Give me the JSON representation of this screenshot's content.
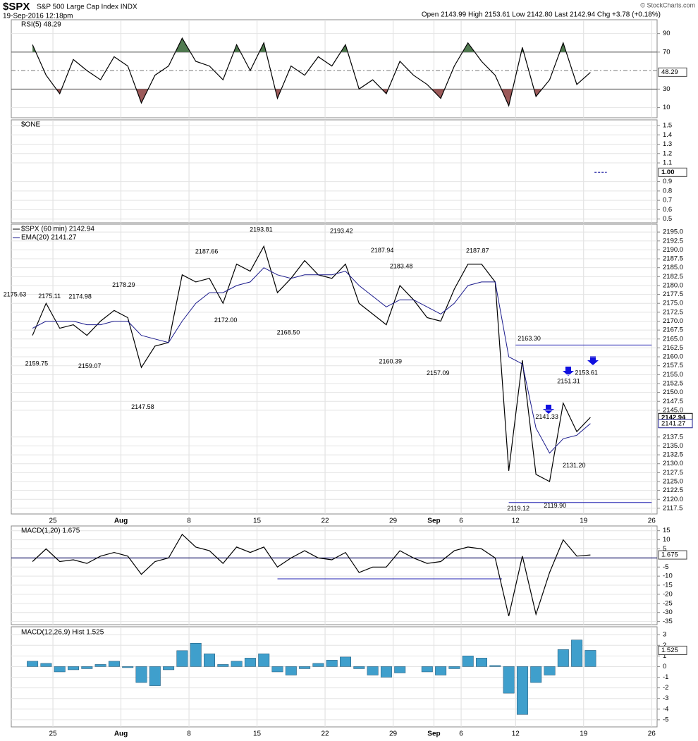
{
  "header": {
    "symbol": "$SPX",
    "name": "S&P 500 Large Cap Index INDX",
    "date": "19-Sep-2016 12:18pm",
    "ohlc": "Open 2143.99 High 2153.61 Low 2142.80 Last 2142.94 Chg +3.78 (+0.18%)",
    "credit": "© StockCharts.com"
  },
  "chart_data": [
    {
      "type": "line",
      "title": "RSI(5) 48.29",
      "ylim": [
        -1,
        105
      ],
      "yticks": [
        10,
        30,
        70,
        90
      ],
      "upper_band": 70,
      "mid_line": 50,
      "lower_band": 30,
      "upper_color": "#4f7a4f",
      "lower_color": "#9c5a5a",
      "last": 48.29,
      "x": [
        -1.5,
        -0.5,
        0.5,
        1.5,
        2.5,
        3.5,
        4.5,
        5.5,
        6.5,
        7.5,
        8.5,
        9.5,
        10.5,
        11.5,
        12.5,
        13.5,
        14.5,
        15.5,
        16.5,
        17.5,
        18.5,
        19.5,
        20.5,
        21.5,
        22.5,
        23.5,
        24.5,
        25.5,
        26.5,
        27.5,
        28.5,
        29.5,
        30.5,
        31.5,
        32.5,
        33.5,
        34.5,
        35.5,
        36.5,
        37.5,
        38.5,
        39.5
      ],
      "series": [
        {
          "name": "RSI(5) 48.29",
          "color": "#000000",
          "values": [
            78,
            45,
            25,
            62,
            50,
            40,
            65,
            55,
            15,
            45,
            55,
            85,
            60,
            55,
            40,
            78,
            50,
            80,
            20,
            55,
            45,
            65,
            55,
            78,
            30,
            40,
            25,
            60,
            45,
            35,
            20,
            55,
            80,
            60,
            45,
            12,
            75,
            22,
            40,
            80,
            35,
            48
          ]
        }
      ]
    },
    {
      "type": "line",
      "title": "$ONE",
      "ylim": [
        0.46,
        1.56
      ],
      "yticks": [
        1.5,
        1.4,
        1.3,
        1.2,
        1.1,
        0.9,
        0.8,
        0.7,
        0.6,
        0.5
      ],
      "last": {
        "value": 1,
        "label": "1.00"
      },
      "x": [
        39.8,
        40.7
      ],
      "series": [
        {
          "name": "$ONE",
          "color": "#1a1aa0",
          "dash": true,
          "values": [
            1,
            1
          ]
        }
      ]
    },
    {
      "type": "line",
      "xlim": [
        -3.06,
        44.4
      ],
      "xticks": [
        {
          "value": 0,
          "label": "25"
        },
        {
          "value": 5,
          "label": "Aug"
        },
        {
          "value": 10,
          "label": "8"
        },
        {
          "value": 15,
          "label": "15"
        },
        {
          "value": 20,
          "label": "22"
        },
        {
          "value": 25,
          "label": "29"
        },
        {
          "value": 28,
          "label": "Sep"
        },
        {
          "value": 30,
          "label": "6"
        },
        {
          "value": 34,
          "label": "12"
        },
        {
          "value": 39,
          "label": "19"
        },
        {
          "value": 44,
          "label": "26"
        }
      ],
      "ylim": [
        2115.9,
        2197.2
      ],
      "yticks": [
        {
          "value": 2195,
          "label": "2195.0"
        },
        2192.5,
        {
          "value": 2190,
          "label": "2190.0"
        },
        2187.5,
        {
          "value": 2185,
          "label": "2185.0"
        },
        2182.5,
        {
          "value": 2180,
          "label": "2180.0"
        },
        2177.5,
        {
          "value": 2175,
          "label": "2175.0"
        },
        2172.5,
        {
          "value": 2170,
          "label": "2170.0"
        },
        2167.5,
        {
          "value": 2165,
          "label": "2165.0"
        },
        2162.5,
        {
          "value": 2160,
          "label": "2160.0"
        },
        2157.5,
        {
          "value": 2155,
          "label": "2155.0"
        },
        2152.5,
        {
          "value": 2150,
          "label": "2150.0"
        },
        2147.5,
        {
          "value": 2145,
          "label": "2145.0"
        },
        2137.5,
        {
          "value": 2135,
          "label": "2135.0"
        },
        2132.5,
        {
          "value": 2130,
          "label": "2130.0"
        },
        2127.5,
        {
          "value": 2125,
          "label": "2125.0"
        },
        2122.5,
        {
          "value": 2120,
          "label": "2120.0"
        },
        2117.5
      ],
      "grid": true,
      "x": [
        -1.5,
        -0.5,
        0.5,
        1.5,
        2.5,
        3.5,
        4.5,
        5.5,
        6.5,
        7.5,
        8.5,
        9.5,
        10.5,
        11.5,
        12.5,
        13.5,
        14.5,
        15.5,
        16.5,
        17.5,
        18.5,
        19.5,
        20.5,
        21.5,
        22.5,
        23.5,
        24.5,
        25.5,
        26.5,
        27.5,
        28.5,
        29.5,
        30.5,
        31.5,
        32.5,
        33.5,
        34.5,
        35.5,
        36.5,
        37.5,
        38.5,
        39.5
      ],
      "series": [
        {
          "name": "$SPX (60 min) 2142.94",
          "color": "#000000",
          "last": 2142.94,
          "values": [
            2166,
            2175,
            2168,
            2169,
            2166,
            2170,
            2173,
            2171,
            2157,
            2163,
            2164,
            2183,
            2181,
            2182,
            2175,
            2186,
            2184,
            2191,
            2178,
            2182,
            2187,
            2183,
            2182,
            2186,
            2175,
            2172,
            2169,
            2180,
            2176,
            2171,
            2170,
            2179,
            2186,
            2186,
            2181,
            2128,
            2159,
            2127,
            2125,
            2147,
            2139,
            2143
          ]
        },
        {
          "name": "EMA(20) 2141.27",
          "color": "#1a1a8c",
          "last": 2141.27,
          "values": [
            2168,
            2170,
            2170,
            2170,
            2169,
            2169,
            2170,
            2170,
            2166,
            2165,
            2164,
            2170,
            2175,
            2178,
            2178,
            2180,
            2181,
            2185,
            2183,
            2182,
            2183,
            2183,
            2183,
            2184,
            2180,
            2177,
            2174,
            2176,
            2176,
            2174,
            2172,
            2175,
            2180,
            2181,
            2181,
            2160,
            2158,
            2140,
            2133,
            2137,
            2138,
            2141.27
          ]
        }
      ],
      "lines": [
        {
          "x": [
            34,
            44
          ],
          "y": [
            2163.3,
            2163.3
          ]
        },
        {
          "x": [
            33.5,
            44
          ],
          "y": [
            2119.12,
            2119.12
          ]
        }
      ],
      "annotations": [
        {
          "x": -2.8,
          "value": 2175.63,
          "label": "2175.63",
          "position": "above"
        },
        {
          "x": -0.25,
          "value": 2175.11,
          "label": "2175.11",
          "position": "above"
        },
        {
          "x": 2,
          "value": 2174.98,
          "label": "2174.98",
          "position": "above"
        },
        {
          "x": 5.2,
          "value": 2178.29,
          "label": "2178.29",
          "position": "above"
        },
        {
          "x": -1.2,
          "value": 2159.75,
          "label": "2159.75",
          "position": "below"
        },
        {
          "x": 2.7,
          "value": 2159.07,
          "label": "2159.07",
          "position": "below"
        },
        {
          "x": 6.6,
          "value": 2147.58,
          "label": "2147.58",
          "position": "below"
        },
        {
          "x": 11.3,
          "value": 2187.66,
          "label": "2187.66",
          "position": "above"
        },
        {
          "x": 12.7,
          "value": 2172.0,
          "label": "2172.00",
          "position": "below"
        },
        {
          "x": 15.3,
          "value": 2193.81,
          "label": "2193.81",
          "position": "above"
        },
        {
          "x": 17.3,
          "value": 2168.5,
          "label": "2168.50",
          "position": "below"
        },
        {
          "x": 21.2,
          "value": 2193.42,
          "label": "2193.42",
          "position": "above"
        },
        {
          "x": 24.2,
          "value": 2187.94,
          "label": "2187.94",
          "position": "above"
        },
        {
          "x": 25.6,
          "value": 2183.48,
          "label": "2183.48",
          "position": "above"
        },
        {
          "x": 24.8,
          "value": 2160.39,
          "label": "2160.39",
          "position": "below"
        },
        {
          "x": 28.3,
          "value": 2157.09,
          "label": "2157.09",
          "position": "below"
        },
        {
          "x": 31.2,
          "value": 2187.87,
          "label": "2187.87",
          "position": "above"
        },
        {
          "x": 35,
          "value": 2163.3,
          "label": "2163.30",
          "position": "above"
        },
        {
          "x": 34.2,
          "value": 2119.12,
          "label": "2119.12",
          "position": "below"
        },
        {
          "x": 36.9,
          "value": 2119.9,
          "label": "2119.90",
          "position": "below"
        },
        {
          "x": 36.3,
          "value": 2141.33,
          "label": "2141.33",
          "position": "above"
        },
        {
          "x": 37.9,
          "value": 2151.31,
          "label": "2151.31",
          "position": "above"
        },
        {
          "x": 39.2,
          "value": 2153.61,
          "label": "2153.61",
          "position": "above"
        },
        {
          "x": 38.3,
          "value": 2131.2,
          "label": "2131.20",
          "position": "below"
        }
      ]
    },
    {
      "type": "line",
      "title": "MACD(1,20) 1.675",
      "ylim": [
        -36.7,
        17.6
      ],
      "yticks": [
        15,
        10,
        5,
        -5,
        -10,
        -15,
        -20,
        -25,
        -30,
        -35
      ],
      "zero_line": true,
      "last": 1.675,
      "x": [
        -1.5,
        -0.5,
        0.5,
        1.5,
        2.5,
        3.5,
        4.5,
        5.5,
        6.5,
        7.5,
        8.5,
        9.5,
        10.5,
        11.5,
        12.5,
        13.5,
        14.5,
        15.5,
        16.5,
        17.5,
        18.5,
        19.5,
        20.5,
        21.5,
        22.5,
        23.5,
        24.5,
        25.5,
        26.5,
        27.5,
        28.5,
        29.5,
        30.5,
        31.5,
        32.5,
        33.5,
        34.5,
        35.5,
        36.5,
        37.5,
        38.5,
        39.5
      ],
      "series": [
        {
          "name": "MACD(1,20) 1.675",
          "color": "#000000",
          "values": [
            -2,
            5,
            -2,
            -1,
            -3,
            1,
            3,
            1,
            -9,
            -2,
            0,
            13,
            6,
            4,
            -3,
            6,
            3,
            6,
            -5,
            0,
            4,
            0,
            -1,
            3,
            -8,
            -5,
            -5,
            4,
            0,
            -3,
            -2,
            4,
            6,
            5,
            0,
            -32,
            1,
            -31,
            -8,
            10,
            1,
            1.675
          ]
        }
      ],
      "lines": [
        {
          "x": [
            16.5,
            33
          ],
          "y": [
            -11.5,
            -11.5
          ]
        }
      ]
    },
    {
      "type": "bar",
      "title": "MACD(12,26,9) Hist 1.525",
      "ylim": [
        -5.67,
        3.74
      ],
      "yticks": [
        3,
        2,
        1,
        0,
        -1,
        -2,
        -3,
        -4,
        -5
      ],
      "color": "#3f9fcc",
      "last": 1.525,
      "xlim": [
        -3.06,
        44.4
      ],
      "xticks": [
        {
          "value": 0,
          "label": "25"
        },
        {
          "value": 5,
          "label": "Aug"
        },
        {
          "value": 10,
          "label": "8"
        },
        {
          "value": 15,
          "label": "15"
        },
        {
          "value": 20,
          "label": "22"
        },
        {
          "value": 25,
          "label": "29"
        },
        {
          "value": 28,
          "label": "Sep"
        },
        {
          "value": 30,
          "label": "6"
        },
        {
          "value": 34,
          "label": "12"
        },
        {
          "value": 39,
          "label": "19"
        },
        {
          "value": 44,
          "label": "26"
        }
      ],
      "x": [
        -1.5,
        -0.5,
        0.5,
        1.5,
        2.5,
        3.5,
        4.5,
        5.5,
        6.5,
        7.5,
        8.5,
        9.5,
        10.5,
        11.5,
        12.5,
        13.5,
        14.5,
        15.5,
        16.5,
        17.5,
        18.5,
        19.5,
        20.5,
        21.5,
        22.5,
        23.5,
        24.5,
        25.5,
        26.5,
        27.5,
        28.5,
        29.5,
        30.5,
        31.5,
        32.5,
        33.5,
        34.5,
        35.5,
        36.5,
        37.5,
        38.5,
        39.5
      ],
      "values": [
        0.5,
        0.3,
        -0.5,
        -0.3,
        -0.2,
        0.2,
        0.5,
        -0.1,
        -1.5,
        -1.8,
        -0.3,
        1.5,
        2.2,
        1.2,
        0.2,
        0.5,
        0.8,
        1.2,
        -0.5,
        -0.8,
        -0.2,
        0.3,
        0.6,
        0.9,
        -0.2,
        -0.8,
        -1,
        -0.6,
        0,
        -0.5,
        -0.8,
        -0.2,
        1,
        0.8,
        0.1,
        -2.5,
        -4.5,
        -1.5,
        -0.8,
        1.6,
        2.5,
        1.525
      ]
    }
  ]
}
